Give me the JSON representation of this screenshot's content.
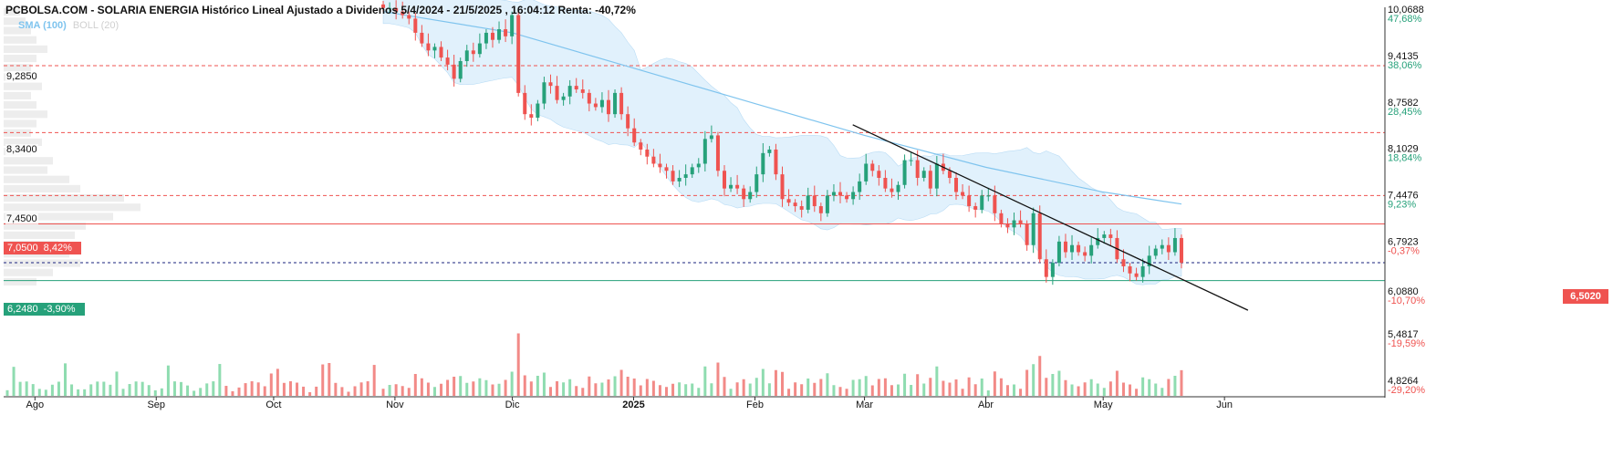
{
  "title": "PCBOLSA.COM - SOLARIA ENERGIA Histórico Lineal Ajustado a Dividenos 5/4/2024 - 21/5/2025 , 16:04:12 Renta: -40,72%",
  "legend": {
    "sma": "SMA (100)",
    "boll": "BOLL (20)"
  },
  "levels": [
    {
      "label": "9,2850",
      "value": 9.285,
      "style": "dashed-red"
    },
    {
      "label": "8,3400",
      "value": 8.34,
      "style": "dashed-red"
    },
    {
      "label": "7,4500",
      "value": 7.45,
      "style": "dashed-red"
    }
  ],
  "resistance": {
    "price": "7,0500",
    "pct": "8,42%",
    "value": 7.05
  },
  "support": {
    "price": "6,2480",
    "pct": "-3,90%",
    "value": 6.248
  },
  "last_price": {
    "label": "6,5020",
    "value": 6.502
  },
  "colors": {
    "up": "#26a17a",
    "down": "#ef5350",
    "sma": "#7fc4ee",
    "band": "#e1f1fc",
    "volume_up": "#8fdcb0",
    "volume_down": "#f28a87",
    "mid_line": "#1a237e"
  },
  "chart_data": {
    "type": "candlestick",
    "title": "PCBOLSA.COM - SOLARIA ENERGIA Histórico Lineal Ajustado a Dividenos 5/4/2024 - 21/5/2025 , 16:04:12 Renta: -40,72%",
    "y_ticks": [
      {
        "price": "10,0688",
        "pct": "47,68%",
        "value": 10.0688
      },
      {
        "price": "9,4135",
        "pct": "38,06%",
        "value": 9.4135
      },
      {
        "price": "8,7582",
        "pct": "28,45%",
        "value": 8.7582
      },
      {
        "price": "8,1029",
        "pct": "18,84%",
        "value": 8.1029
      },
      {
        "price": "7,4476",
        "pct": "9,23%",
        "value": 7.4476
      },
      {
        "price": "6,7923",
        "pct": "-0,37%",
        "value": 6.7923
      },
      {
        "price": "6,0880",
        "pct": "-10,70%",
        "value": 6.088
      },
      {
        "price": "5,4817",
        "pct": "-19,59%",
        "value": 5.4817
      },
      {
        "price": "4,8264",
        "pct": "-29,20%",
        "value": 4.8264
      }
    ],
    "x_ticks": [
      {
        "label": "Ago",
        "bold": false,
        "date": "2024-08-01"
      },
      {
        "label": "Sep",
        "bold": false,
        "date": "2024-09-01"
      },
      {
        "label": "Oct",
        "bold": false,
        "date": "2024-10-01"
      },
      {
        "label": "Nov",
        "bold": false,
        "date": "2024-11-01"
      },
      {
        "label": "Dic",
        "bold": false,
        "date": "2024-12-01"
      },
      {
        "label": "2025",
        "bold": true,
        "date": "2025-01-01"
      },
      {
        "label": "Feb",
        "bold": false,
        "date": "2025-02-01"
      },
      {
        "label": "Mar",
        "bold": false,
        "date": "2025-03-01"
      },
      {
        "label": "Abr",
        "bold": false,
        "date": "2025-04-01"
      },
      {
        "label": "May",
        "bold": false,
        "date": "2025-05-01"
      },
      {
        "label": "Jun",
        "bold": false,
        "date": "2025-06-01"
      }
    ],
    "ylim": [
      4.62,
      10.11
    ],
    "x_range": [
      "2024-07-24",
      "2025-07-12"
    ],
    "grid": false,
    "closes": [
      10.1,
      10.1,
      10.05,
      10.0,
      9.95,
      9.75,
      9.6,
      9.5,
      9.55,
      9.4,
      9.3,
      9.1,
      9.35,
      9.5,
      9.45,
      9.6,
      9.75,
      9.65,
      9.8,
      9.7,
      10.0,
      8.9,
      8.6,
      8.55,
      8.75,
      9.05,
      9.0,
      8.8,
      8.85,
      9.0,
      8.95,
      8.9,
      8.75,
      8.7,
      8.8,
      8.6,
      8.9,
      8.6,
      8.4,
      8.2,
      8.1,
      8.0,
      7.9,
      7.85,
      7.8,
      7.65,
      7.7,
      7.75,
      7.85,
      7.9,
      8.25,
      8.3,
      7.8,
      7.55,
      7.6,
      7.55,
      7.4,
      7.5,
      7.75,
      8.05,
      8.1,
      7.75,
      7.4,
      7.35,
      7.3,
      7.25,
      7.45,
      7.3,
      7.2,
      7.45,
      7.5,
      7.45,
      7.4,
      7.5,
      7.65,
      7.9,
      7.8,
      7.7,
      7.55,
      7.5,
      7.6,
      7.95,
      7.95,
      7.7,
      7.8,
      7.55,
      7.9,
      7.8,
      7.7,
      7.5,
      7.45,
      7.3,
      7.25,
      7.45,
      7.45,
      7.2,
      7.05,
      7.0,
      7.1,
      7.05,
      6.75,
      7.2,
      6.55,
      6.3,
      6.5,
      6.8,
      6.65,
      6.75,
      6.65,
      6.6,
      6.75,
      6.85,
      6.9,
      6.85,
      6.55,
      6.45,
      6.35,
      6.3,
      6.45,
      6.6,
      6.7,
      6.75,
      6.65,
      6.85,
      6.502
    ],
    "sma_100": [
      {
        "date": "2024-10-29",
        "value": 10.05
      },
      {
        "date": "2024-12-01",
        "value": 9.75
      },
      {
        "date": "2025-01-01",
        "value": 9.25
      },
      {
        "date": "2025-02-01",
        "value": 8.75
      },
      {
        "date": "2025-03-01",
        "value": 8.3
      },
      {
        "date": "2025-04-01",
        "value": 7.85
      },
      {
        "date": "2025-05-01",
        "value": 7.5
      },
      {
        "date": "2025-05-21",
        "value": 7.33
      }
    ],
    "trendline": [
      {
        "date": "2025-02-26",
        "value": 8.45
      },
      {
        "date": "2025-06-07",
        "value": 5.83
      }
    ],
    "volume_profile": [
      0.03,
      0.04,
      0.05,
      0.06,
      0.08,
      0.06,
      0.05,
      0.06,
      0.07,
      0.05,
      0.06,
      0.08,
      0.06,
      0.05,
      0.07,
      0.05,
      0.09,
      0.08,
      0.12,
      0.14,
      0.22,
      0.25,
      0.2,
      0.15,
      0.13,
      0.1,
      0.12,
      0.14,
      0.09,
      0.06
    ]
  }
}
